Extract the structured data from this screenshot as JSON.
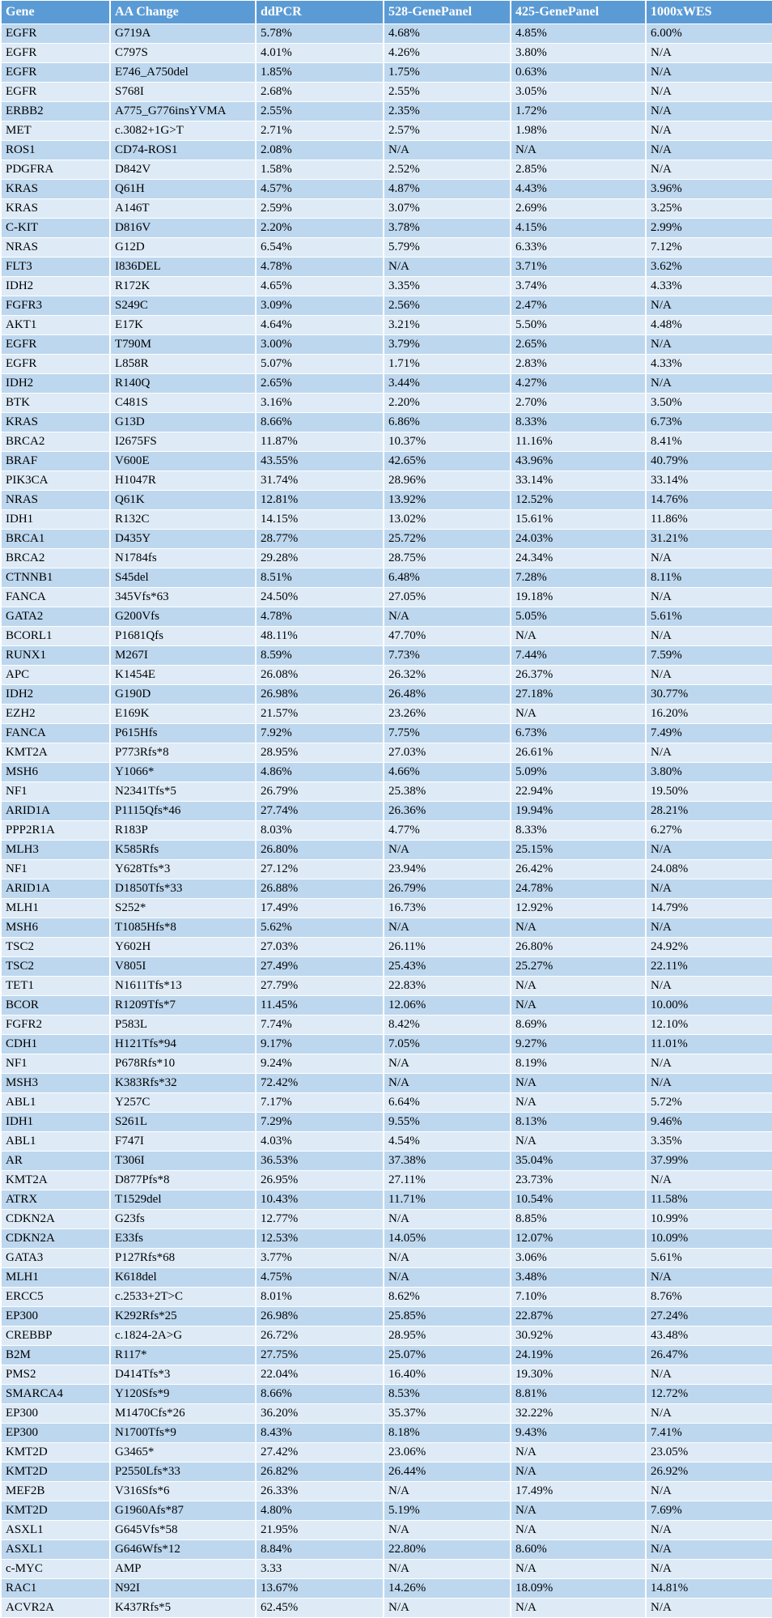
{
  "colors": {
    "header_bg": "#5b9bd5",
    "header_text": "#ffffff",
    "row_odd_bg": "#bdd7ee",
    "row_even_bg": "#deebf7",
    "grid": "#ffffff",
    "body_text": "#000000"
  },
  "table": {
    "columns": [
      "Gene",
      "AA Change",
      "ddPCR",
      "528-GenePanel",
      "425-GenePanel",
      "1000xWES"
    ],
    "rows": [
      [
        "EGFR",
        "G719A",
        "5.78%",
        "4.68%",
        "4.85%",
        "6.00%"
      ],
      [
        "EGFR",
        "C797S",
        "4.01%",
        "4.26%",
        "3.80%",
        "N/A"
      ],
      [
        "EGFR",
        "E746_A750del",
        "1.85%",
        "1.75%",
        "0.63%",
        "N/A"
      ],
      [
        "EGFR",
        "S768I",
        "2.68%",
        "2.55%",
        "3.05%",
        "N/A"
      ],
      [
        "ERBB2",
        "A775_G776insYVMA",
        "2.55%",
        "2.35%",
        "1.72%",
        "N/A"
      ],
      [
        "MET",
        "c.3082+1G>T",
        "2.71%",
        "2.57%",
        "1.98%",
        "N/A"
      ],
      [
        "ROS1",
        "CD74-ROS1",
        "2.08%",
        "N/A",
        "N/A",
        "N/A"
      ],
      [
        "PDGFRA",
        "D842V",
        "1.58%",
        "2.52%",
        "2.85%",
        "N/A"
      ],
      [
        "KRAS",
        "Q61H",
        "4.57%",
        "4.87%",
        "4.43%",
        "3.96%"
      ],
      [
        "KRAS",
        "A146T",
        "2.59%",
        "3.07%",
        "2.69%",
        "3.25%"
      ],
      [
        "C-KIT",
        "D816V",
        "2.20%",
        "3.78%",
        "4.15%",
        "2.99%"
      ],
      [
        "NRAS",
        "G12D",
        "6.54%",
        "5.79%",
        "6.33%",
        "7.12%"
      ],
      [
        "FLT3",
        "I836DEL",
        "4.78%",
        "N/A",
        "3.71%",
        "3.62%"
      ],
      [
        "IDH2",
        "R172K",
        "4.65%",
        "3.35%",
        "3.74%",
        "4.33%"
      ],
      [
        "FGFR3",
        "S249C",
        "3.09%",
        "2.56%",
        "2.47%",
        "N/A"
      ],
      [
        "AKT1",
        "E17K",
        "4.64%",
        "3.21%",
        "5.50%",
        "4.48%"
      ],
      [
        "EGFR",
        "T790M",
        "3.00%",
        "3.79%",
        "2.65%",
        "N/A"
      ],
      [
        "EGFR",
        "L858R",
        "5.07%",
        "1.71%",
        "2.83%",
        "4.33%"
      ],
      [
        "IDH2",
        "R140Q",
        "2.65%",
        "3.44%",
        "4.27%",
        "N/A"
      ],
      [
        "BTK",
        "C481S",
        "3.16%",
        "2.20%",
        "2.70%",
        "3.50%"
      ],
      [
        "KRAS",
        "G13D",
        "8.66%",
        "6.86%",
        "8.33%",
        "6.73%"
      ],
      [
        "BRCA2",
        "I2675FS",
        "11.87%",
        "10.37%",
        "11.16%",
        "8.41%"
      ],
      [
        "BRAF",
        "V600E",
        "43.55%",
        "42.65%",
        "43.96%",
        "40.79%"
      ],
      [
        "PIK3CA",
        "H1047R",
        "31.74%",
        "28.96%",
        "33.14%",
        "33.14%"
      ],
      [
        "NRAS",
        "Q61K",
        "12.81%",
        "13.92%",
        "12.52%",
        "14.76%"
      ],
      [
        "IDH1",
        "R132C",
        "14.15%",
        "13.02%",
        "15.61%",
        "11.86%"
      ],
      [
        "BRCA1",
        "D435Y",
        "28.77%",
        "25.72%",
        "24.03%",
        "31.21%"
      ],
      [
        "BRCA2",
        "N1784fs",
        "29.28%",
        "28.75%",
        "24.34%",
        "N/A"
      ],
      [
        "CTNNB1",
        "S45del",
        "8.51%",
        "6.48%",
        "7.28%",
        "8.11%"
      ],
      [
        "FANCA",
        "345Vfs*63",
        "24.50%",
        "27.05%",
        "19.18%",
        "N/A"
      ],
      [
        "GATA2",
        "G200Vfs",
        "4.78%",
        "N/A",
        "5.05%",
        "5.61%"
      ],
      [
        "BCORL1",
        "P1681Qfs",
        "48.11%",
        "47.70%",
        "N/A",
        "N/A"
      ],
      [
        "RUNX1",
        "M267I",
        "8.59%",
        "7.73%",
        "7.44%",
        "7.59%"
      ],
      [
        "APC",
        "K1454E",
        "26.08%",
        "26.32%",
        "26.37%",
        "N/A"
      ],
      [
        "IDH2",
        "G190D",
        "26.98%",
        "26.48%",
        "27.18%",
        "30.77%"
      ],
      [
        "EZH2",
        "E169K",
        "21.57%",
        "23.26%",
        "N/A",
        "16.20%"
      ],
      [
        "FANCA",
        "P615Hfs",
        "7.92%",
        "7.75%",
        "6.73%",
        "7.49%"
      ],
      [
        "KMT2A",
        "P773Rfs*8",
        "28.95%",
        "27.03%",
        "26.61%",
        "N/A"
      ],
      [
        "MSH6",
        "Y1066*",
        "4.86%",
        "4.66%",
        "5.09%",
        "3.80%"
      ],
      [
        "NF1",
        "N2341Tfs*5",
        "26.79%",
        "25.38%",
        "22.94%",
        "19.50%"
      ],
      [
        "ARID1A",
        "P1115Qfs*46",
        "27.74%",
        "26.36%",
        "19.94%",
        "28.21%"
      ],
      [
        "PPP2R1A",
        "R183P",
        "8.03%",
        "4.77%",
        "8.33%",
        "6.27%"
      ],
      [
        "MLH3",
        "K585Rfs",
        "26.80%",
        "N/A",
        "25.15%",
        "N/A"
      ],
      [
        "NF1",
        "Y628Tfs*3",
        "27.12%",
        "23.94%",
        "26.42%",
        "24.08%"
      ],
      [
        "ARID1A",
        "D1850Tfs*33",
        "26.88%",
        "26.79%",
        "24.78%",
        "N/A"
      ],
      [
        "MLH1",
        "S252*",
        "17.49%",
        "16.73%",
        "12.92%",
        "14.79%"
      ],
      [
        "MSH6",
        "T1085Hfs*8",
        "5.62%",
        "N/A",
        "N/A",
        "N/A"
      ],
      [
        "TSC2",
        "Y602H",
        "27.03%",
        "26.11%",
        "26.80%",
        "24.92%"
      ],
      [
        "TSC2",
        "V805I",
        "27.49%",
        "25.43%",
        "25.27%",
        "22.11%"
      ],
      [
        "TET1",
        "N1611Tfs*13",
        "27.79%",
        "22.83%",
        "N/A",
        "N/A"
      ],
      [
        "BCOR",
        "R1209Tfs*7",
        "11.45%",
        "12.06%",
        "N/A",
        "10.00%"
      ],
      [
        "FGFR2",
        "P583L",
        "7.74%",
        "8.42%",
        "8.69%",
        "12.10%"
      ],
      [
        "CDH1",
        "H121Tfs*94",
        "9.17%",
        "7.05%",
        "9.27%",
        "11.01%"
      ],
      [
        "NF1",
        "P678Rfs*10",
        "9.24%",
        "N/A",
        "8.19%",
        "N/A"
      ],
      [
        "MSH3",
        "K383Rfs*32",
        "72.42%",
        "N/A",
        "N/A",
        "N/A"
      ],
      [
        "ABL1",
        "Y257C",
        "7.17%",
        "6.64%",
        "N/A",
        "5.72%"
      ],
      [
        "IDH1",
        "S261L",
        "7.29%",
        "9.55%",
        "8.13%",
        "9.46%"
      ],
      [
        "ABL1",
        "F747I",
        "4.03%",
        "4.54%",
        "N/A",
        "3.35%"
      ],
      [
        "AR",
        "T306I",
        "36.53%",
        "37.38%",
        "35.04%",
        "37.99%"
      ],
      [
        "KMT2A",
        "D877Pfs*8",
        "26.95%",
        "27.11%",
        "23.73%",
        "N/A"
      ],
      [
        "ATRX",
        "T1529del",
        "10.43%",
        "11.71%",
        "10.54%",
        "11.58%"
      ],
      [
        "CDKN2A",
        "G23fs",
        "12.77%",
        "N/A",
        "8.85%",
        "10.99%"
      ],
      [
        "CDKN2A",
        "E33fs",
        "12.53%",
        "14.05%",
        "12.07%",
        "10.09%"
      ],
      [
        "GATA3",
        "P127Rfs*68",
        "3.77%",
        "N/A",
        "3.06%",
        "5.61%"
      ],
      [
        "MLH1",
        "K618del",
        "4.75%",
        "N/A",
        "3.48%",
        "N/A"
      ],
      [
        "ERCC5",
        "c.2533+2T>C",
        "8.01%",
        "8.62%",
        "7.10%",
        "8.76%"
      ],
      [
        "EP300",
        "K292Rfs*25",
        "26.98%",
        "25.85%",
        "22.87%",
        "27.24%"
      ],
      [
        "CREBBP",
        "c.1824-2A>G",
        "26.72%",
        "28.95%",
        "30.92%",
        "43.48%"
      ],
      [
        "B2M",
        "R117*",
        "27.75%",
        "25.07%",
        "24.19%",
        "26.47%"
      ],
      [
        "PMS2",
        "D414Tfs*3",
        "22.04%",
        "16.40%",
        "19.30%",
        "N/A"
      ],
      [
        "SMARCA4",
        "Y120Sfs*9",
        "8.66%",
        "8.53%",
        "8.81%",
        "12.72%"
      ],
      [
        "EP300",
        "M1470Cfs*26",
        "36.20%",
        "35.37%",
        "32.22%",
        "N/A"
      ],
      [
        "EP300",
        "N1700Tfs*9",
        "8.43%",
        "8.18%",
        "9.43%",
        "7.41%"
      ],
      [
        "KMT2D",
        "G3465*",
        "27.42%",
        "23.06%",
        "N/A",
        "23.05%"
      ],
      [
        "KMT2D",
        "P2550Lfs*33",
        "26.82%",
        "26.44%",
        "N/A",
        "26.92%"
      ],
      [
        "MEF2B",
        "V316Sfs*6",
        "26.33%",
        "N/A",
        "17.49%",
        "N/A"
      ],
      [
        "KMT2D",
        "G1960Afs*87",
        "4.80%",
        "5.19%",
        "N/A",
        "7.69%"
      ],
      [
        "ASXL1",
        "G645Vfs*58",
        "21.95%",
        "N/A",
        "N/A",
        "N/A"
      ],
      [
        "ASXL1",
        "G646Wfs*12",
        "8.84%",
        "22.80%",
        "8.60%",
        "N/A"
      ],
      [
        "c-MYC",
        "AMP",
        "3.33",
        "N/A",
        "N/A",
        "N/A"
      ],
      [
        "RAC1",
        "N92I",
        "13.67%",
        "14.26%",
        "18.09%",
        "14.81%"
      ],
      [
        "ACVR2A",
        "K437Rfs*5",
        "62.45%",
        "N/A",
        "N/A",
        "N/A"
      ]
    ]
  }
}
